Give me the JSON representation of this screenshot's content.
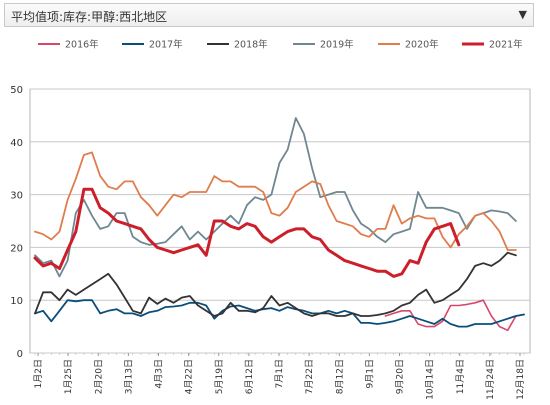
{
  "selector": {
    "label": "平均值项:库存:甲醇:西北地区",
    "arrow_icon": "triangle-down-icon"
  },
  "chart_data": {
    "type": "line",
    "title": "",
    "xlabel": "",
    "ylabel": "",
    "ylim": [
      0,
      50
    ],
    "yticks": [
      0,
      10,
      20,
      30,
      40,
      50
    ],
    "grid": true,
    "legend_position": "top",
    "x_ticks": [
      "1月2日",
      "1月25日",
      "2月20日",
      "3月13日",
      "4月3日",
      "4月22日",
      "5月19日",
      "6月12日",
      "7月1日",
      "7月22日",
      "8月12日",
      "9月1日",
      "9月20日",
      "10月14日",
      "11月4日",
      "11月24日",
      "12月18日"
    ],
    "series": [
      {
        "name": "2016年",
        "color": "#d8476b",
        "width": 1.6,
        "values": [
          null,
          null,
          null,
          null,
          null,
          null,
          null,
          null,
          null,
          null,
          null,
          null,
          null,
          null,
          null,
          null,
          null,
          null,
          null,
          null,
          null,
          null,
          null,
          null,
          null,
          null,
          null,
          null,
          null,
          null,
          null,
          null,
          null,
          null,
          null,
          null,
          null,
          null,
          null,
          null,
          null,
          null,
          null,
          7.0,
          7.5,
          8.0,
          8.0,
          5.5,
          5.0,
          5.0,
          6.0,
          9.0,
          9.0,
          9.2,
          9.5,
          10.0,
          7.0,
          5.0,
          4.3,
          7.0,
          7.3
        ]
      },
      {
        "name": "2017年",
        "color": "#0b4e7c",
        "width": 1.8,
        "values": [
          7.5,
          8.0,
          6.0,
          8.0,
          10.0,
          9.8,
          10.0,
          10.0,
          7.5,
          8.0,
          8.3,
          7.5,
          7.5,
          7.0,
          7.7,
          8.0,
          8.7,
          8.8,
          9.0,
          9.5,
          9.5,
          9.0,
          6.5,
          8.0,
          8.8,
          9.0,
          8.5,
          8.0,
          8.3,
          8.5,
          8.0,
          8.7,
          8.3,
          8.0,
          7.5,
          7.5,
          8.0,
          7.5,
          8.0,
          7.5,
          5.7,
          5.7,
          5.5,
          5.7,
          6.0,
          6.5,
          7.0,
          6.5,
          6.0,
          5.5,
          6.5,
          5.5,
          5.0,
          5.0,
          5.5,
          5.5,
          5.5,
          6.0,
          6.5,
          7.0,
          7.3
        ]
      },
      {
        "name": "2018年",
        "color": "#333333",
        "width": 1.8,
        "values": [
          7.5,
          11.5,
          11.5,
          10.0,
          12.0,
          11.0,
          12.0,
          13.0,
          14.0,
          15.0,
          13.0,
          10.5,
          8.0,
          7.5,
          10.5,
          9.3,
          10.3,
          9.5,
          10.5,
          10.8,
          9.0,
          8.0,
          7.0,
          7.5,
          9.5,
          8.0,
          8.0,
          7.7,
          8.5,
          10.8,
          9.0,
          9.5,
          8.5,
          7.5,
          7.0,
          7.5,
          7.5,
          7.0,
          7.0,
          7.5,
          7.0,
          7.0,
          7.2,
          7.5,
          8.0,
          9.0,
          9.5,
          11.0,
          12.0,
          9.5,
          10.0,
          11.0,
          12.0,
          14.0,
          16.5,
          17.0,
          16.5,
          17.5,
          19.0,
          18.5,
          null
        ]
      },
      {
        "name": "2019年",
        "color": "#6f8790",
        "width": 1.8,
        "values": [
          18.5,
          17.0,
          17.5,
          14.5,
          17.5,
          26.5,
          29.0,
          26.0,
          23.5,
          24.0,
          26.5,
          26.5,
          22.0,
          21.0,
          20.5,
          20.7,
          21.0,
          22.5,
          24.0,
          21.5,
          23.0,
          21.5,
          23.0,
          24.5,
          26.0,
          24.5,
          28.0,
          29.5,
          29.0,
          30.0,
          36.0,
          38.5,
          44.5,
          41.5,
          35.0,
          29.5,
          30.0,
          30.5,
          30.5,
          27.0,
          24.5,
          23.5,
          22.0,
          21.0,
          22.5,
          23.0,
          23.5,
          30.5,
          27.5,
          27.5,
          27.5,
          27.0,
          26.5,
          23.5,
          26.0,
          26.5,
          27.0,
          26.8,
          26.5,
          25.0,
          null
        ]
      },
      {
        "name": "2020年",
        "color": "#e07d4d",
        "width": 1.8,
        "values": [
          23.0,
          22.5,
          21.5,
          23.0,
          29.0,
          33.0,
          37.5,
          38.0,
          33.5,
          31.5,
          31.0,
          32.5,
          32.5,
          29.5,
          28.0,
          26.0,
          28.0,
          30.0,
          29.5,
          30.5,
          30.5,
          30.5,
          33.5,
          32.5,
          32.5,
          31.5,
          31.5,
          31.5,
          30.5,
          26.5,
          26.0,
          27.5,
          30.5,
          31.5,
          32.5,
          32.0,
          28.0,
          25.0,
          24.5,
          24.0,
          22.5,
          22.0,
          23.5,
          23.5,
          28.0,
          24.5,
          25.5,
          26.0,
          25.5,
          25.5,
          22.0,
          20.0,
          22.5,
          24.0,
          26.0,
          26.5,
          25.0,
          23.0,
          19.5,
          19.5,
          null
        ]
      },
      {
        "name": "2021年",
        "color": "#cc1f2a",
        "width": 3.0,
        "values": [
          18.0,
          16.5,
          17.0,
          16.0,
          19.5,
          23.0,
          31.0,
          31.0,
          27.5,
          26.5,
          25.0,
          24.5,
          24.0,
          23.5,
          21.5,
          20.0,
          19.5,
          19.0,
          19.5,
          20.0,
          20.5,
          18.5,
          25.0,
          25.0,
          24.0,
          23.5,
          24.5,
          24.0,
          22.0,
          21.0,
          22.0,
          23.0,
          23.5,
          23.5,
          22.0,
          21.5,
          19.5,
          18.5,
          17.5,
          17.0,
          16.5,
          16.0,
          15.5,
          15.5,
          14.5,
          15.0,
          17.5,
          17.0,
          21.0,
          23.5,
          24.0,
          24.5,
          20.5,
          null,
          null,
          null,
          null,
          null,
          null,
          null,
          null
        ]
      }
    ]
  }
}
